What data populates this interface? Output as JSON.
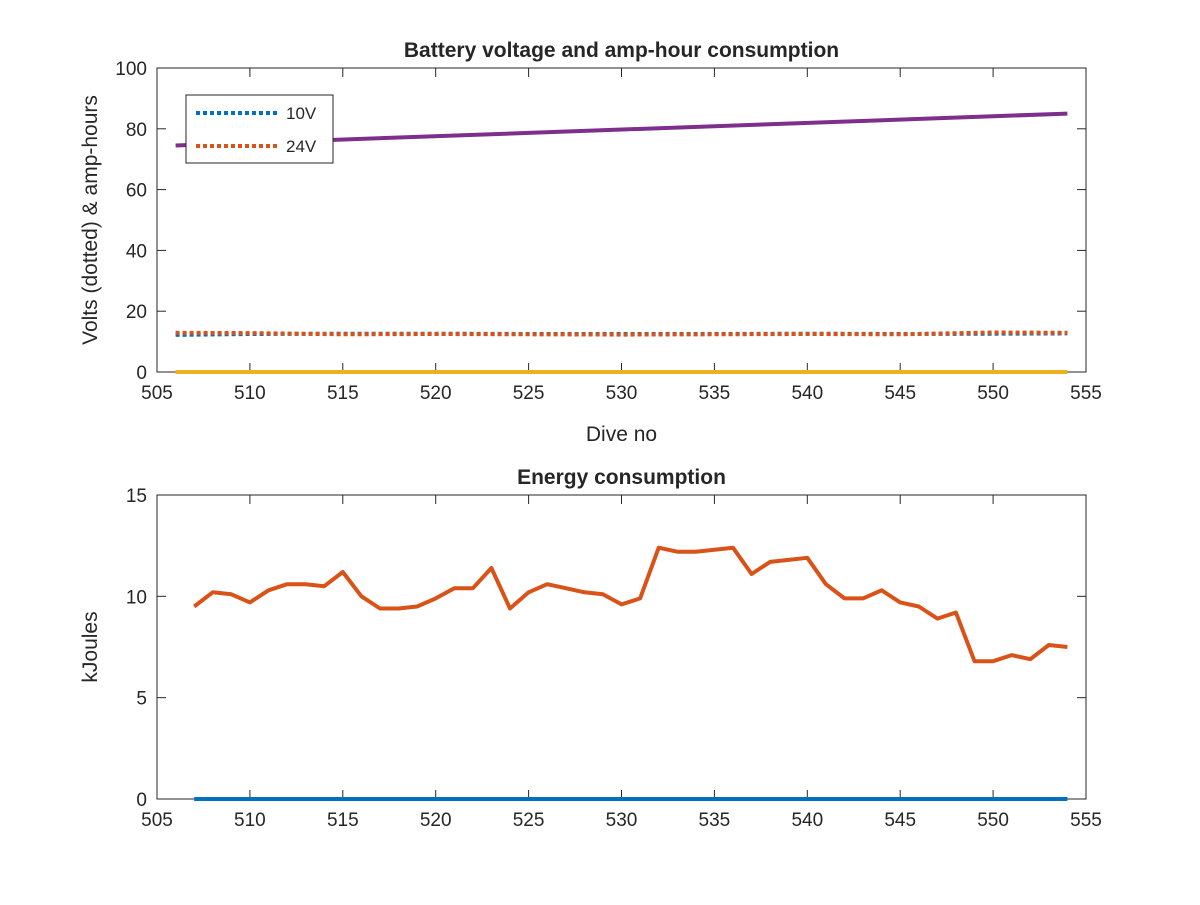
{
  "chart_data": [
    {
      "type": "line",
      "title": "Battery voltage and amp-hour consumption",
      "xlabel": "Dive no",
      "ylabel": "Volts (dotted) & amp-hours",
      "xlim": [
        505,
        555
      ],
      "ylim": [
        0,
        100
      ],
      "xticks": [
        505,
        510,
        515,
        520,
        525,
        530,
        535,
        540,
        545,
        550,
        555
      ],
      "yticks": [
        0,
        20,
        40,
        60,
        80,
        100
      ],
      "grid": false,
      "legend": {
        "placement": "top-left",
        "entries": [
          "10V",
          "24V"
        ]
      },
      "series": [
        {
          "name": "10V",
          "style": "dotted",
          "color": "#0072BD",
          "x": [
            506,
            510,
            515,
            520,
            525,
            530,
            535,
            540,
            545,
            550,
            554
          ],
          "y": [
            12.2,
            12.5,
            12.6,
            12.6,
            12.5,
            12.5,
            12.5,
            12.6,
            12.5,
            12.6,
            12.7
          ]
        },
        {
          "name": "24V",
          "style": "dotted",
          "color": "#D95319",
          "x": [
            506,
            510,
            515,
            520,
            525,
            530,
            535,
            540,
            545,
            550,
            554
          ],
          "y": [
            12.9,
            12.8,
            12.4,
            12.5,
            12.4,
            12.3,
            12.4,
            12.5,
            12.4,
            13.0,
            12.9
          ]
        },
        {
          "style": "solid",
          "color": "#7E2F8E",
          "x": [
            506,
            554
          ],
          "y": [
            74.5,
            85.0
          ]
        },
        {
          "style": "solid",
          "color": "#EDB120",
          "x": [
            506,
            554
          ],
          "y": [
            0,
            0
          ]
        }
      ]
    },
    {
      "type": "line",
      "title": "Energy consumption",
      "xlabel": "",
      "ylabel": "kJoules",
      "xlim": [
        505,
        555
      ],
      "ylim": [
        0,
        15
      ],
      "xticks": [
        505,
        510,
        515,
        520,
        525,
        530,
        535,
        540,
        545,
        550,
        555
      ],
      "yticks": [
        0,
        5,
        10,
        15
      ],
      "grid": false,
      "series": [
        {
          "style": "solid",
          "color": "#D95319",
          "x": [
            507,
            508,
            509,
            510,
            511,
            512,
            513,
            514,
            515,
            516,
            517,
            518,
            519,
            520,
            521,
            522,
            523,
            524,
            525,
            526,
            527,
            528,
            529,
            530,
            531,
            532,
            533,
            534,
            535,
            536,
            537,
            538,
            539,
            540,
            541,
            542,
            543,
            544,
            545,
            546,
            547,
            548,
            549,
            550,
            551,
            552,
            553,
            554
          ],
          "y": [
            9.5,
            10.2,
            10.1,
            9.7,
            10.3,
            10.6,
            10.6,
            10.5,
            11.2,
            10.0,
            9.4,
            9.4,
            9.5,
            9.9,
            10.4,
            10.4,
            11.4,
            9.4,
            10.2,
            10.6,
            10.4,
            10.2,
            10.1,
            9.6,
            9.9,
            12.4,
            12.2,
            12.2,
            12.3,
            12.4,
            11.1,
            11.7,
            11.8,
            11.9,
            10.6,
            9.9,
            9.9,
            10.3,
            9.7,
            9.5,
            8.9,
            9.2,
            6.8,
            6.8,
            7.1,
            6.9,
            7.6,
            7.5
          ]
        },
        {
          "style": "solid",
          "color": "#0072BD",
          "x": [
            507,
            554
          ],
          "y": [
            0,
            0
          ]
        }
      ]
    }
  ]
}
